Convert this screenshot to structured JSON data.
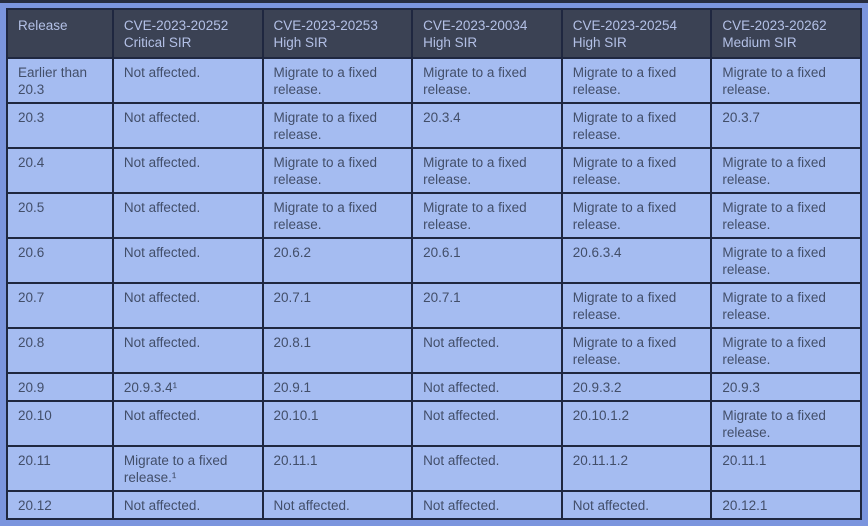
{
  "page": {
    "description_colors": {
      "top_strip": "#272d40",
      "frame_margin": "#7b95de",
      "header_bg": "#3b4254",
      "header_text": "#b3c0e6",
      "cell_bg": "#a5bcf1",
      "cell_text": "#424e69",
      "grid_border": "#1f2740"
    }
  },
  "table": {
    "columns": [
      {
        "title": "Release",
        "sir": ""
      },
      {
        "title": "CVE-2023-20252",
        "sir": "Critical SIR"
      },
      {
        "title": "CVE-2023-20253",
        "sir": "High SIR"
      },
      {
        "title": "CVE-2023-20034",
        "sir": "High SIR"
      },
      {
        "title": "CVE-2023-20254",
        "sir": "High SIR"
      },
      {
        "title": "CVE-2023-20262",
        "sir": "Medium SIR"
      }
    ],
    "rows": [
      {
        "cells": [
          "Earlier than 20.3",
          "Not affected.",
          "Migrate to a fixed release.",
          "Migrate to a fixed release.",
          "Migrate to a fixed release.",
          "Migrate to a fixed release."
        ]
      },
      {
        "cells": [
          "20.3",
          "Not affected.",
          "Migrate to a fixed release.",
          "20.3.4",
          "Migrate to a fixed release.",
          "20.3.7"
        ]
      },
      {
        "cells": [
          "20.4",
          "Not affected.",
          "Migrate to a fixed release.",
          "Migrate to a fixed release.",
          "Migrate to a fixed release.",
          "Migrate to a fixed release."
        ]
      },
      {
        "cells": [
          "20.5",
          "Not affected.",
          "Migrate to a fixed release.",
          "Migrate to a fixed release.",
          "Migrate to a fixed release.",
          "Migrate to a fixed release."
        ]
      },
      {
        "cells": [
          "20.6",
          "Not affected.",
          "20.6.2",
          "20.6.1",
          "20.6.3.4",
          "Migrate to a fixed release."
        ]
      },
      {
        "cells": [
          "20.7",
          "Not affected.",
          "20.7.1",
          "20.7.1",
          "Migrate to a fixed release.",
          "Migrate to a fixed release."
        ]
      },
      {
        "cells": [
          "20.8",
          "Not affected.",
          "20.8.1",
          "Not affected.",
          "Migrate to a fixed release.",
          "Migrate to a fixed release."
        ]
      },
      {
        "cells": [
          "20.9",
          "20.9.3.4¹",
          "20.9.1",
          "Not affected.",
          "20.9.3.2",
          "20.9.3"
        ]
      },
      {
        "cells": [
          "20.10",
          "Not affected.",
          "20.10.1",
          "Not affected.",
          "20.10.1.2",
          "Migrate to a fixed release."
        ]
      },
      {
        "cells": [
          "20.11",
          "Migrate to a fixed release.¹",
          "20.11.1",
          "Not affected.",
          "20.11.1.2",
          "20.11.1"
        ]
      },
      {
        "cells": [
          "20.12",
          "Not affected.",
          "Not affected.",
          "Not affected.",
          "Not affected.",
          "20.12.1"
        ]
      }
    ]
  }
}
